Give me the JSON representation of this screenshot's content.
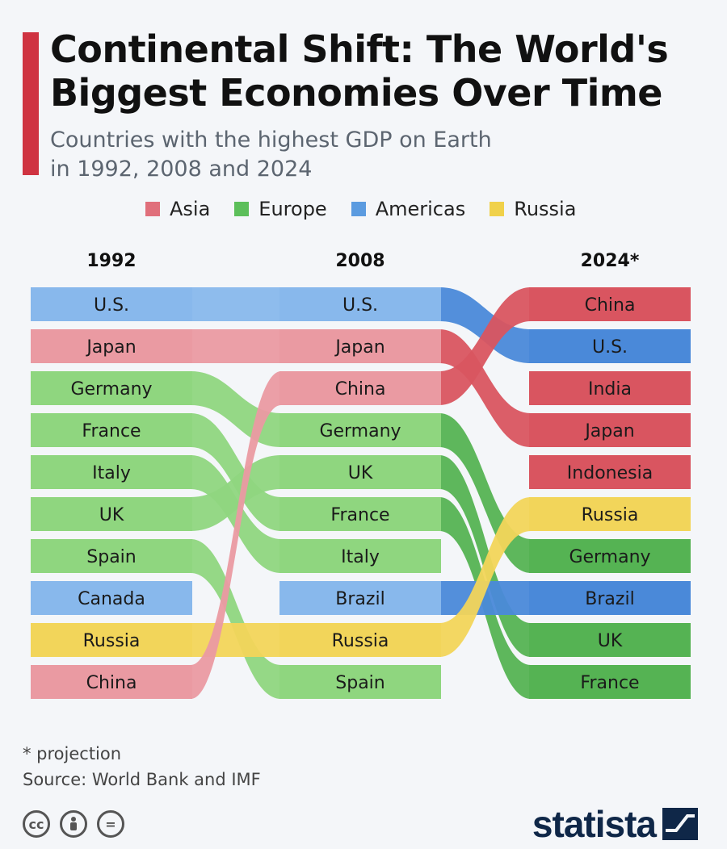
{
  "title": "Continental Shift: The World's\nBiggest Economies Over Time",
  "subtitle": "Countries with the highest GDP on Earth\nin 1992, 2008 and 2024",
  "legend": [
    {
      "label": "Asia",
      "color": "#e06f7b"
    },
    {
      "label": "Europe",
      "color": "#5cbf5a"
    },
    {
      "label": "Americas",
      "color": "#5b9be0"
    },
    {
      "label": "Russia",
      "color": "#f0d14a"
    }
  ],
  "chart_data": {
    "type": "table",
    "columns": [
      "1992",
      "2008",
      "2024*"
    ],
    "rankings": {
      "1992": [
        "U.S.",
        "Japan",
        "Germany",
        "France",
        "Italy",
        "UK",
        "Spain",
        "Canada",
        "Russia",
        "China"
      ],
      "2008": [
        "U.S.",
        "Japan",
        "China",
        "Germany",
        "UK",
        "France",
        "Italy",
        "Brazil",
        "Russia",
        "Spain"
      ],
      "2024*": [
        "China",
        "U.S.",
        "India",
        "Japan",
        "Indonesia",
        "Russia",
        "Germany",
        "Brazil",
        "UK",
        "France"
      ]
    },
    "regions": {
      "U.S.": "Americas",
      "Canada": "Americas",
      "Brazil": "Americas",
      "Japan": "Asia",
      "China": "Asia",
      "India": "Asia",
      "Indonesia": "Asia",
      "Germany": "Europe",
      "France": "Europe",
      "Italy": "Europe",
      "UK": "Europe",
      "Spain": "Europe",
      "Russia": "Russia"
    },
    "region_colors": {
      "Asia": {
        "light": "#ea9aa2",
        "dark": "#d95560"
      },
      "Europe": {
        "light": "#8fd67f",
        "dark": "#55b353"
      },
      "Americas": {
        "light": "#88b8ec",
        "dark": "#4a89d9"
      },
      "Russia": {
        "light": "#f2d55a",
        "dark": "#f2d55a"
      }
    }
  },
  "footnote": "* projection",
  "source": "Source: World Bank and IMF",
  "brand": "statista",
  "license_icons": [
    "cc-icon",
    "attribution-icon",
    "no-derivatives-icon"
  ]
}
